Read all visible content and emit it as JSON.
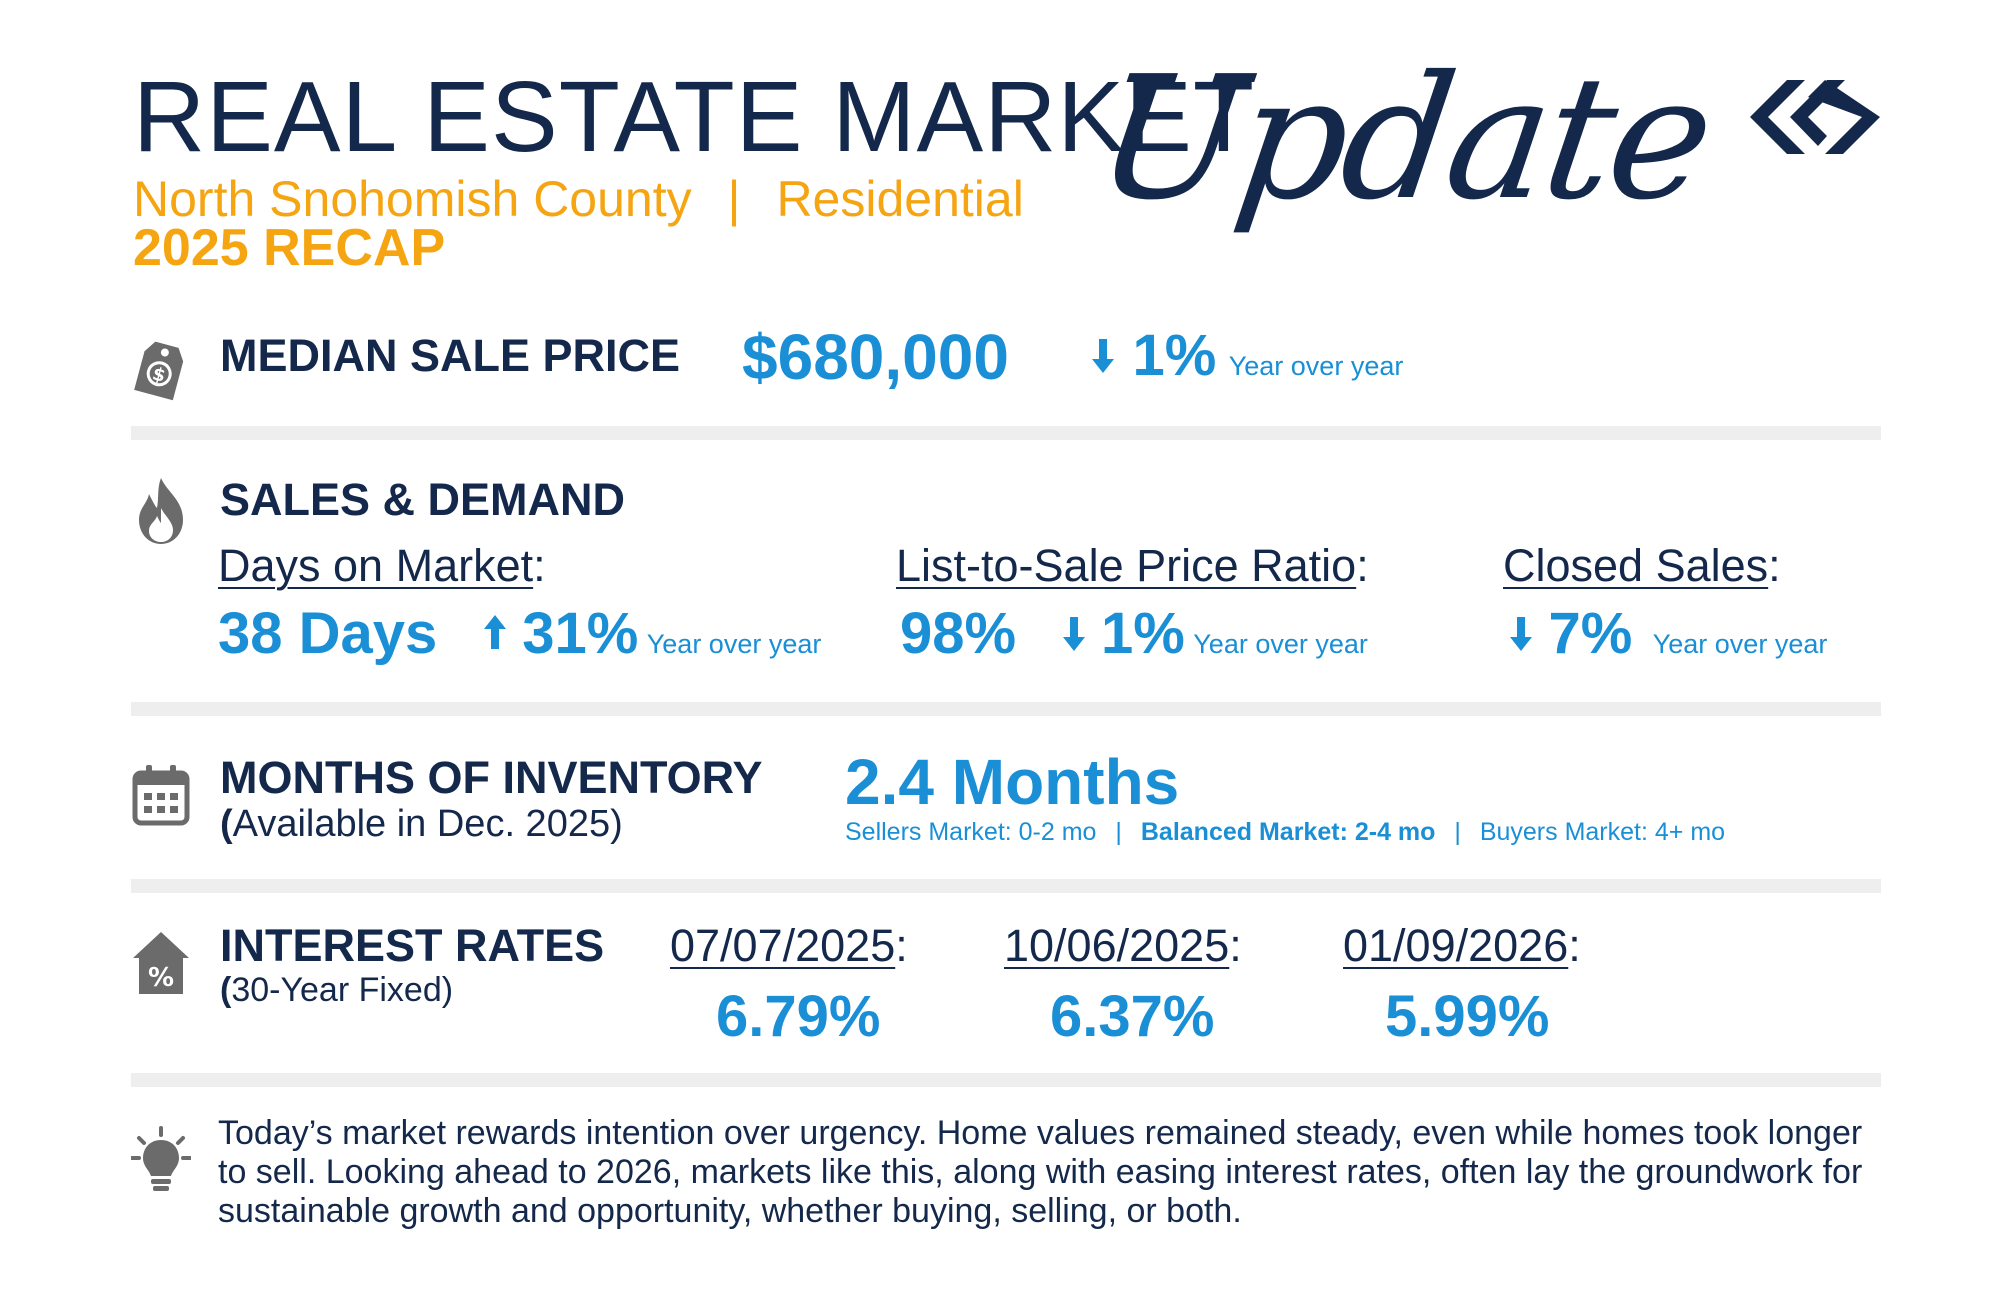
{
  "header": {
    "title": "REAL ESTATE MARKET",
    "script_word": "Update",
    "region": "North Snohomish County",
    "separator": "|",
    "segment": "Residential",
    "recap": "2025 RECAP",
    "logo_icon": "diamond-chevron-logo-icon"
  },
  "colors": {
    "navy": "#14284b",
    "blue": "#1a8fd6",
    "orange": "#f5a512",
    "divider": "#eeeeee",
    "icon_gray": "#6b6b6b"
  },
  "median": {
    "icon": "price-tag-icon",
    "heading": "MEDIAN SALE PRICE",
    "value": "$680,000",
    "change": "1%",
    "direction": "down",
    "yoy": "Year over year"
  },
  "sales": {
    "icon": "fire-icon",
    "heading": "SALES & DEMAND",
    "dom": {
      "label": "Days on Market",
      "colon": ":",
      "value": "38 Days",
      "change": "31%",
      "direction": "up",
      "yoy": "Year over year"
    },
    "ratio": {
      "label": "List-to-Sale Price Ratio",
      "colon": ":",
      "value": "98%",
      "change": "1%",
      "direction": "down",
      "yoy": "Year over year"
    },
    "closed": {
      "label": "Closed Sales",
      "colon": ":",
      "change": "7%",
      "direction": "down",
      "yoy": "Year over year"
    }
  },
  "inventory": {
    "icon": "calendar-icon",
    "heading": "MONTHS OF INVENTORY",
    "paren_open": "(",
    "sub": "Available in Dec. 2025)",
    "value": "2.4 Months",
    "sellers": "Sellers Market: 0-2 mo",
    "balanced": "Balanced Market: 2-4 mo",
    "buyers": "Buyers Market: 4+ mo",
    "sep": "|"
  },
  "rates": {
    "icon": "house-percent-icon",
    "heading": "INTEREST RATES",
    "paren_open": "(",
    "sub": "30-Year Fixed)",
    "items": [
      {
        "date": "07/07/2025",
        "colon": ":",
        "rate": "6.79%"
      },
      {
        "date": "10/06/2025",
        "colon": ":",
        "rate": "6.37%"
      },
      {
        "date": "01/09/2026",
        "colon": ":",
        "rate": "5.99%"
      }
    ]
  },
  "insight": {
    "icon": "lightbulb-icon",
    "text": "Today’s market rewards intention over urgency. Home values remained steady, even while homes took longer to sell. Looking ahead to 2026, markets like this, along with easing interest rates, often lay the groundwork for sustainable growth and opportunity, whether buying, selling, or both."
  }
}
